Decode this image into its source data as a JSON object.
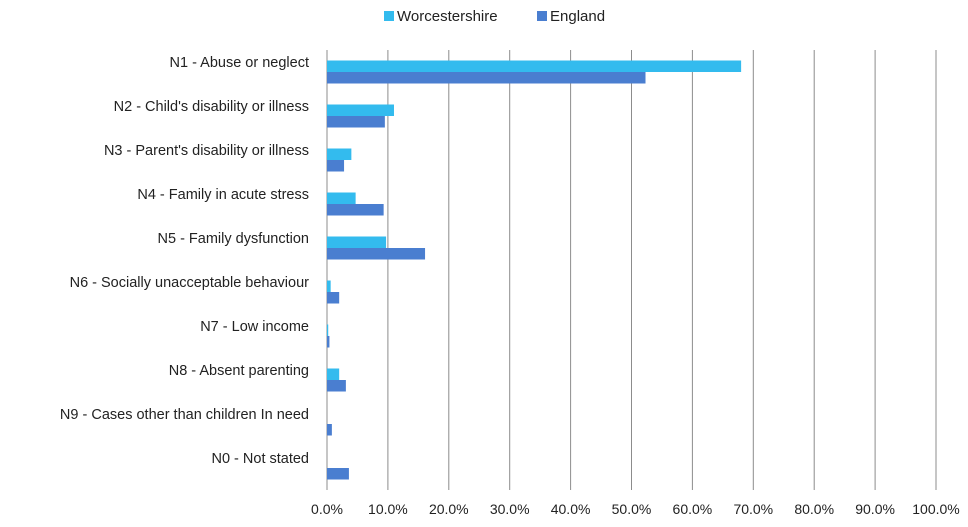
{
  "chart_data": {
    "type": "bar",
    "orientation": "horizontal",
    "categories": [
      "N1 - Abuse or neglect",
      "N2 - Child's disability or illness",
      "N3 - Parent's disability or illness",
      "N4 - Family in acute stress",
      "N5 - Family dysfunction",
      "N6 - Socially unacceptable behaviour",
      "N7 - Low income",
      "N8 - Absent parenting",
      "N9 - Cases other than children In need",
      "N0 - Not stated"
    ],
    "series": [
      {
        "name": "Worcestershire",
        "color": "#33bbee",
        "values": [
          68.0,
          11.0,
          4.0,
          4.7,
          9.7,
          0.6,
          0.2,
          2.0,
          0.0,
          0.0
        ]
      },
      {
        "name": "England",
        "color": "#4a7ed0",
        "values": [
          52.3,
          9.5,
          2.8,
          9.3,
          16.1,
          2.0,
          0.4,
          3.1,
          0.8,
          3.6
        ]
      }
    ],
    "xlim": [
      0,
      100
    ],
    "xticks": [
      "0.0%",
      "10.0%",
      "20.0%",
      "30.0%",
      "40.0%",
      "50.0%",
      "60.0%",
      "70.0%",
      "80.0%",
      "90.0%",
      "100.0%"
    ],
    "grid": true,
    "legend_position": "top-center",
    "title": "",
    "xlabel": "",
    "ylabel": ""
  }
}
